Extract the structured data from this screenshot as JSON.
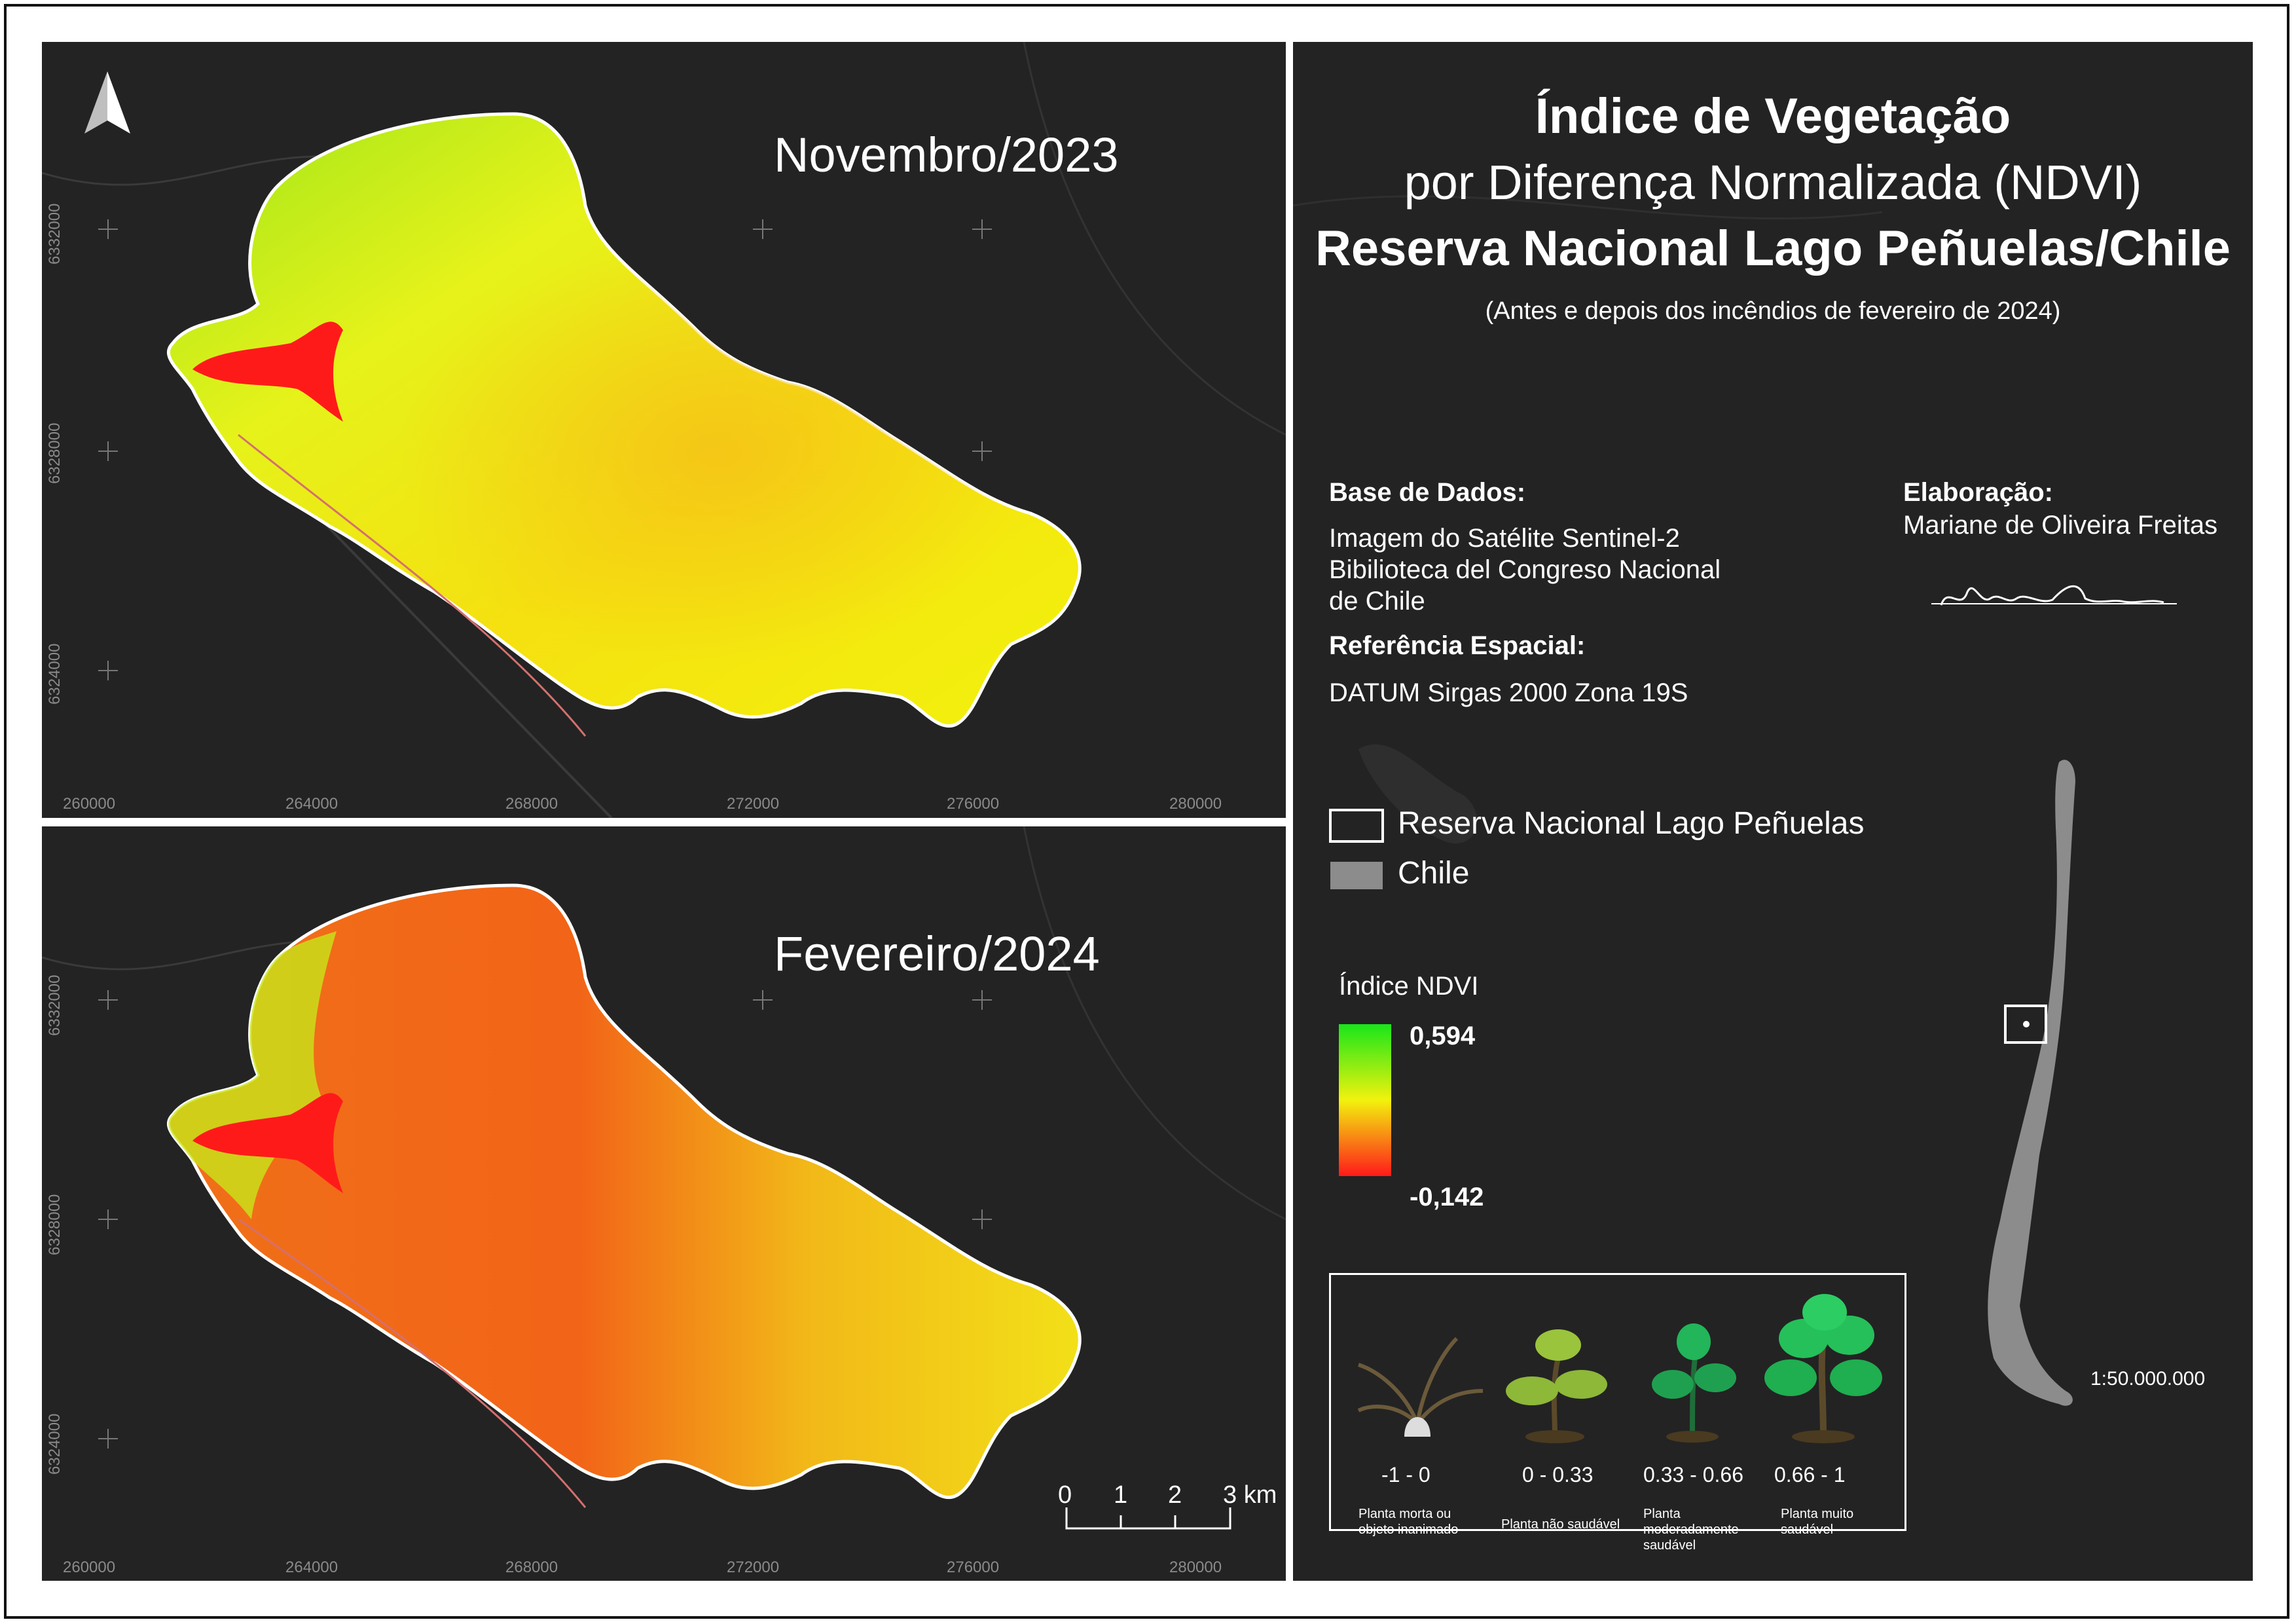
{
  "maps": {
    "top_title": "Novembro/2023",
    "bottom_title": "Fevereiro/2024",
    "x_ticks": [
      "260000",
      "264000",
      "268000",
      "272000",
      "276000",
      "280000"
    ],
    "y_ticks": [
      "6332000",
      "6328000",
      "6324000"
    ],
    "north_arrow": "north-arrow-icon",
    "scale_bar": {
      "labels": [
        "0",
        "1",
        "2",
        "3 km"
      ]
    }
  },
  "side": {
    "title_line1": "Índice de Vegetação",
    "title_line2": "por Diferença Normalizada (NDVI)",
    "title_line3": "Reserva Nacional Lago Peñuelas/Chile",
    "subtitle": "(Antes e depois dos incêndios de fevereiro de 2024)",
    "base_dados_label": "Base de Dados:",
    "base_dados_line1": "Imagem do Satélite Sentinel-2",
    "base_dados_line2": "Bibilioteca del Congreso Nacional",
    "base_dados_line3": "de Chile",
    "referencia_label": "Referência Espacial:",
    "referencia_value": "DATUM Sirgas 2000 Zona 19S",
    "elaboracao_label": "Elaboração:",
    "elaboracao_value": "Mariane de Oliveira Freitas",
    "legend_reserve": "Reserva Nacional Lago Peñuelas",
    "legend_chile": "Chile",
    "ndvi_title": "Índice NDVI",
    "ndvi_max": "0,594",
    "ndvi_min": "-0,142",
    "inset_scale": "1:50.000.000",
    "health_classes": [
      {
        "range": "-1 - 0",
        "desc_line1": "Planta morta ou",
        "desc_line2": "objeto inanimado",
        "desc_line3": ""
      },
      {
        "range": "0 - 0.33",
        "desc_line1": "Planta não saudável",
        "desc_line2": "",
        "desc_line3": ""
      },
      {
        "range": "0.33 - 0.66",
        "desc_line1": "Planta",
        "desc_line2": "moderadamente",
        "desc_line3": "saudável"
      },
      {
        "range": "0.66 - 1",
        "desc_line1": "Planta muito",
        "desc_line2": "saudável",
        "desc_line3": ""
      }
    ]
  },
  "colors": {
    "background": "#232323",
    "ndvi_high": "#19e619",
    "ndvi_mid": "#f2f20d",
    "ndvi_low": "#ff1a1a",
    "chile": "#8c8c8c"
  }
}
